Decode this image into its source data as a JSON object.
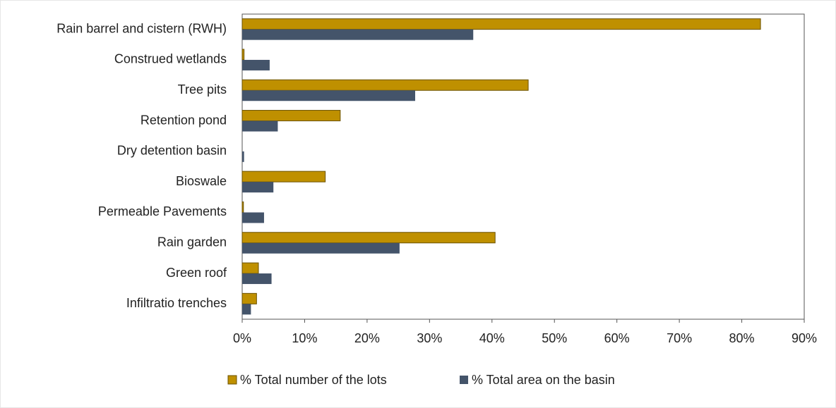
{
  "chart_data": {
    "type": "bar",
    "orientation": "horizontal",
    "categories": [
      "Rain barrel and cistern (RWH)",
      "Construed wetlands",
      "Tree pits",
      "Retention pond",
      "Dry detention basin",
      "Bioswale",
      "Permeable  Pavements",
      "Rain garden",
      "Green roof",
      "Infiltratio  trenches"
    ],
    "series": [
      {
        "name": "% Total number of the lots",
        "color": "#bf9000",
        "values": [
          83.0,
          0.3,
          45.8,
          15.7,
          0,
          13.3,
          0.2,
          40.5,
          2.6,
          2.3
        ]
      },
      {
        "name": "% Total area on the basin",
        "color": "#44546a",
        "values": [
          37.0,
          4.4,
          27.7,
          5.7,
          0.3,
          5.0,
          3.5,
          25.2,
          4.7,
          1.4
        ]
      }
    ],
    "xlim": [
      0,
      90
    ],
    "xticks": [
      {
        "value": 0,
        "label": "0%"
      },
      {
        "value": 10,
        "label": "10%"
      },
      {
        "value": 20,
        "label": "20%"
      },
      {
        "value": 30,
        "label": "30%"
      },
      {
        "value": 40,
        "label": "40%"
      },
      {
        "value": 50,
        "label": "50%"
      },
      {
        "value": 60,
        "label": "60%"
      },
      {
        "value": 70,
        "label": "70%"
      },
      {
        "value": 80,
        "label": "80%"
      },
      {
        "value": 90,
        "label": "90%"
      }
    ],
    "legend": "bottom"
  }
}
